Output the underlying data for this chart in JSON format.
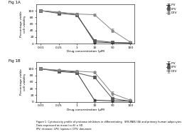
{
  "fig_labels": [
    "Fig 1A",
    "Fig 1B"
  ],
  "x_labels": [
    "0.01",
    "0.25",
    "1",
    "10",
    "50",
    "100"
  ],
  "x_values": [
    0.01,
    0.25,
    1,
    10,
    50,
    100
  ],
  "xlabel": "Drug concentration (µM)",
  "ylabel": "Percentage viable\ncell viability",
  "ylim": [
    0,
    120
  ],
  "yticks": [
    0,
    20,
    40,
    60,
    80,
    100
  ],
  "data_A": {
    "IPV": {
      "y": [
        100,
        95,
        90,
        5,
        3,
        2
      ],
      "err": [
        3,
        3,
        4,
        2,
        2,
        1
      ]
    },
    "LPV": {
      "y": [
        100,
        92,
        87,
        10,
        4,
        2
      ],
      "err": [
        4,
        3,
        4,
        3,
        2,
        1
      ]
    },
    "DTV": {
      "y": [
        100,
        95,
        90,
        88,
        40,
        5
      ],
      "err": [
        3,
        3,
        3,
        4,
        6,
        2
      ]
    }
  },
  "data_B": {
    "IPV": {
      "y": [
        100,
        95,
        90,
        5,
        3,
        2
      ],
      "err": [
        4,
        3,
        4,
        2,
        2,
        1
      ]
    },
    "LPV": {
      "y": [
        100,
        92,
        88,
        75,
        10,
        2
      ],
      "err": [
        4,
        3,
        4,
        5,
        3,
        1
      ]
    },
    "DTV": {
      "y": [
        100,
        96,
        93,
        90,
        25,
        5
      ],
      "err": [
        3,
        3,
        3,
        3,
        6,
        2
      ]
    }
  },
  "caption": "Figure 1. Cytotoxicity profile of protease inhibitors in differentiating   SFB-PASU (A) and primary human adipocytes (B).\nData expressed as mean (n=6) ± SD.\nIPV: ritonavir; LPV: lopinavir; DTV: darunavir.",
  "background": "#ffffff",
  "marker_size": 2.5,
  "line_width": 0.7,
  "cap_size": 1.5,
  "err_lw": 0.5,
  "colors": {
    "IPV": "#333333",
    "LPV": "#555555",
    "DTV": "#888888"
  },
  "markers": {
    "IPV": "^",
    "LPV": "s",
    "DTV": "o"
  }
}
